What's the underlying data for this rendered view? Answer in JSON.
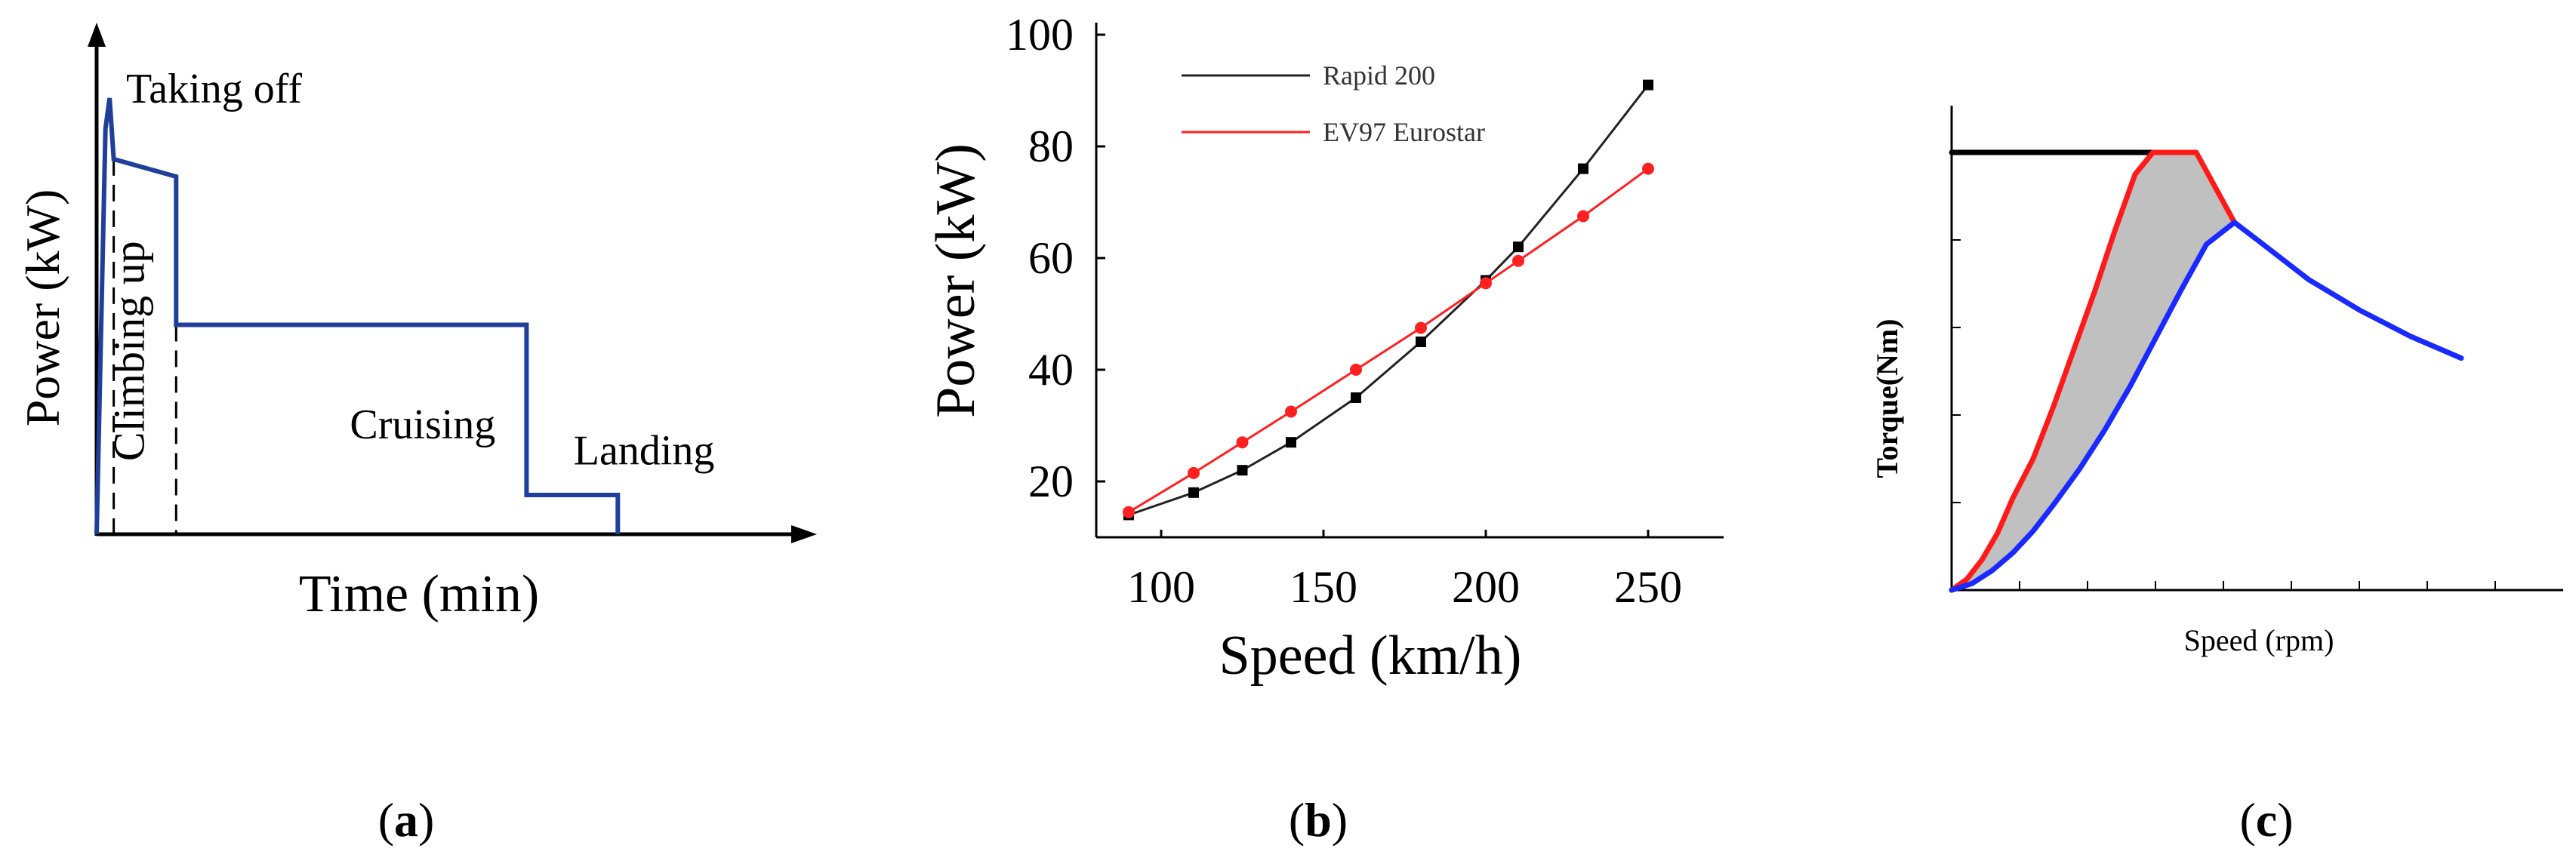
{
  "chart_data": [
    {
      "id": "a",
      "type": "line",
      "panel_label": "a",
      "xlabel": "Time (min)",
      "ylabel": "Power (kW)",
      "axes_ticks": false,
      "note": "Qualitative mission power profile; values in arbitrary units (x: time fraction 0-100, y: power 0-100).",
      "series": [
        {
          "name": "power-profile",
          "color": "#1f3f9a",
          "x": [
            0,
            1.5,
            2.2,
            2.9,
            13.5,
            13.5,
            73,
            73,
            88.5,
            88.5
          ],
          "y": [
            0,
            93,
            100,
            86,
            82,
            48,
            48,
            9,
            9,
            0
          ]
        }
      ],
      "phase_lines": [
        {
          "type": "dashed",
          "x": 2.9,
          "y_top": 86
        },
        {
          "type": "dashed",
          "x": 13.5,
          "y_top": 48
        }
      ],
      "annotations": [
        {
          "text": "Taking off",
          "x": 5,
          "y": 99
        },
        {
          "text": "Climbing up",
          "x": 8,
          "y": 42,
          "rotation": -90
        },
        {
          "text": "Cruising",
          "x": 43,
          "y": 22
        },
        {
          "text": "Landing",
          "x": 81,
          "y": 16
        }
      ]
    },
    {
      "id": "b",
      "type": "line",
      "panel_label": "b",
      "xlabel": "Speed (km/h)",
      "ylabel": "Power (kW)",
      "xlim": [
        80,
        270
      ],
      "ylim": [
        10,
        100
      ],
      "xticks": [
        100,
        150,
        200,
        250
      ],
      "yticks": [
        20,
        40,
        60,
        80,
        100
      ],
      "legend_position": "top-left",
      "series": [
        {
          "name": "Rapid 200",
          "color": "#222222",
          "marker": "square",
          "x": [
            90,
            110,
            125,
            140,
            160,
            180,
            200,
            210,
            230,
            250
          ],
          "y": [
            14,
            18,
            22,
            27,
            35,
            45,
            56,
            62,
            76,
            91
          ]
        },
        {
          "name": "EV97 Eurostar",
          "color": "#ff2020",
          "marker": "circle",
          "x": [
            90,
            110,
            125,
            140,
            160,
            180,
            200,
            210,
            230,
            250
          ],
          "y": [
            14.5,
            21.5,
            27,
            32.5,
            40,
            47.5,
            55.5,
            59.5,
            67.5,
            76
          ]
        }
      ]
    },
    {
      "id": "c",
      "type": "area",
      "panel_label": "c",
      "xlabel": "Speed (rpm)",
      "ylabel": "Torque(Nm)",
      "axes_tick_labels": false,
      "minor_tick_count_x": 8,
      "minor_tick_count_y": 5,
      "note": "Normalized units: x 0-113, y 0-100.",
      "series": [
        {
          "name": "rated-torque-line",
          "color": "#000000",
          "x": [
            0,
            39.5
          ],
          "y": [
            100,
            100
          ]
        },
        {
          "name": "red-envelope",
          "color": "#ff1a1a",
          "x": [
            0,
            3,
            6,
            9,
            12,
            16,
            20,
            24,
            28,
            32,
            36,
            39.5,
            48,
            55.5
          ],
          "y": [
            0,
            2.5,
            7,
            13,
            21,
            30,
            42,
            55,
            68,
            82,
            95,
            100,
            100,
            84
          ]
        },
        {
          "name": "blue-curve",
          "color": "#1a2aff",
          "x": [
            0,
            4,
            8,
            12,
            16,
            20,
            25,
            30,
            35,
            40,
            45,
            50,
            55.5,
            60,
            70,
            80,
            90,
            100
          ],
          "y": [
            0,
            1.5,
            4.5,
            8.5,
            13.5,
            19.5,
            27.5,
            36.5,
            46.5,
            57.5,
            68.5,
            79,
            84,
            80,
            71,
            64,
            58,
            53
          ]
        }
      ],
      "shaded_region": {
        "between": [
          "red-envelope",
          "blue-curve"
        ],
        "color": "#c0c0c0"
      }
    }
  ]
}
